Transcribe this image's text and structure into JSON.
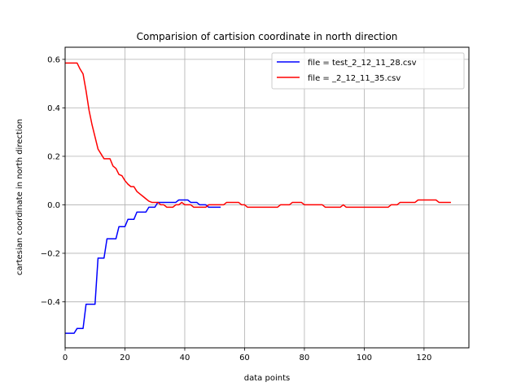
{
  "chart_data": {
    "type": "line",
    "title": "Comparision of cartision coordinate in north direction",
    "xlabel": "data points",
    "ylabel": "cartesian coordinate in north direction",
    "xlim": [
      0,
      135
    ],
    "ylim": [
      -0.59,
      0.65
    ],
    "xticks": [
      0,
      20,
      40,
      60,
      80,
      100,
      120
    ],
    "yticks": [
      -0.4,
      -0.2,
      0.0,
      0.2,
      0.4,
      0.6
    ],
    "ytick_labels": [
      "−0.4",
      "−0.2",
      "0.0",
      "0.2",
      "0.4",
      "0.6"
    ],
    "grid": true,
    "legend_position": "top-right",
    "series": [
      {
        "name": "file = test_2_12_11_28.csv",
        "color": "#0000ff",
        "x": [
          0,
          1,
          2,
          3,
          4,
          5,
          6,
          7,
          8,
          9,
          10,
          11,
          12,
          13,
          14,
          15,
          16,
          17,
          18,
          19,
          20,
          21,
          22,
          23,
          24,
          25,
          26,
          27,
          28,
          29,
          30,
          31,
          32,
          33,
          34,
          35,
          36,
          37,
          38,
          39,
          40,
          41,
          42,
          43,
          44,
          45,
          46,
          47,
          48,
          49,
          50,
          51,
          52
        ],
        "y": [
          -0.53,
          -0.53,
          -0.53,
          -0.53,
          -0.51,
          -0.51,
          -0.51,
          -0.41,
          -0.41,
          -0.41,
          -0.41,
          -0.22,
          -0.22,
          -0.22,
          -0.14,
          -0.14,
          -0.14,
          -0.14,
          -0.09,
          -0.09,
          -0.09,
          -0.06,
          -0.06,
          -0.06,
          -0.03,
          -0.03,
          -0.03,
          -0.03,
          -0.01,
          -0.01,
          -0.01,
          0.01,
          0.01,
          0.01,
          0.01,
          0.01,
          0.01,
          0.01,
          0.02,
          0.02,
          0.02,
          0.02,
          0.01,
          0.01,
          0.01,
          0.0,
          0.0,
          0.0,
          -0.01,
          -0.01,
          -0.01,
          -0.01,
          -0.01
        ]
      },
      {
        "name": "file = _2_12_11_35.csv",
        "color": "#ff0000",
        "x": [
          0,
          2,
          4,
          5,
          6,
          7,
          8,
          9,
          10,
          11,
          12,
          13,
          14,
          15,
          16,
          17,
          18,
          19,
          20,
          21,
          22,
          23,
          24,
          25,
          26,
          27,
          28,
          29,
          30,
          31,
          32,
          33,
          34,
          35,
          36,
          37,
          38,
          39,
          40,
          41,
          42,
          43,
          44,
          45,
          46,
          47,
          48,
          50,
          52,
          53,
          54,
          56,
          58,
          59,
          60,
          61,
          62,
          64,
          66,
          68,
          70,
          71,
          72,
          74,
          75,
          76,
          77,
          78,
          79,
          80,
          82,
          84,
          86,
          87,
          88,
          90,
          92,
          93,
          94,
          96,
          98,
          100,
          102,
          104,
          106,
          108,
          109,
          110,
          111,
          112,
          114,
          116,
          117,
          118,
          120,
          122,
          123,
          124,
          125,
          126,
          128,
          129
        ],
        "y": [
          0.585,
          0.585,
          0.585,
          0.56,
          0.54,
          0.47,
          0.39,
          0.33,
          0.28,
          0.23,
          0.21,
          0.19,
          0.19,
          0.19,
          0.16,
          0.15,
          0.125,
          0.12,
          0.1,
          0.085,
          0.075,
          0.075,
          0.055,
          0.045,
          0.035,
          0.025,
          0.015,
          0.01,
          0.01,
          0.01,
          0.0,
          0.0,
          -0.01,
          -0.01,
          -0.01,
          0.0,
          0.0,
          0.01,
          0.0,
          0.0,
          0.0,
          -0.01,
          -0.01,
          -0.01,
          -0.01,
          -0.01,
          0.0,
          0.0,
          0.0,
          0.0,
          0.01,
          0.01,
          0.01,
          0.0,
          0.0,
          -0.01,
          -0.01,
          -0.01,
          -0.01,
          -0.01,
          -0.01,
          -0.01,
          0.0,
          0.0,
          0.0,
          0.01,
          0.01,
          0.01,
          0.01,
          0.0,
          0.0,
          0.0,
          0.0,
          -0.01,
          -0.01,
          -0.01,
          -0.01,
          0.0,
          -0.01,
          -0.01,
          -0.01,
          -0.01,
          -0.01,
          -0.01,
          -0.01,
          -0.01,
          0.0,
          0.0,
          0.0,
          0.01,
          0.01,
          0.01,
          0.01,
          0.02,
          0.02,
          0.02,
          0.02,
          0.02,
          0.01,
          0.01,
          0.01,
          0.01
        ]
      }
    ]
  }
}
